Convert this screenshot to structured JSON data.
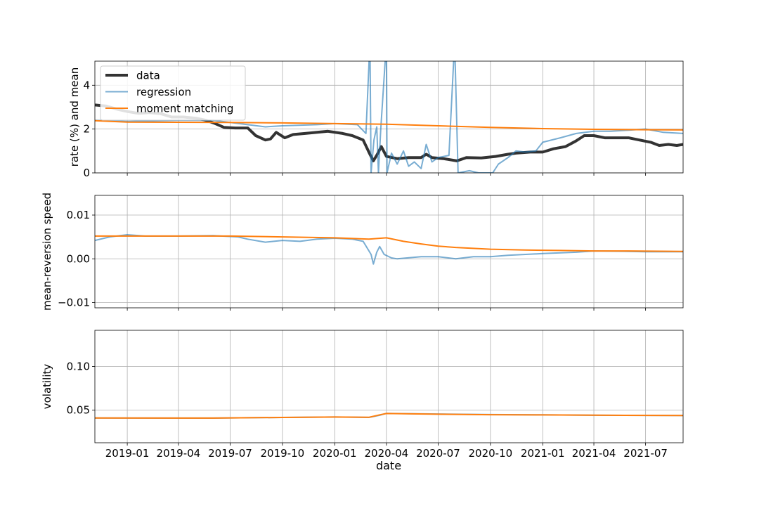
{
  "chart_data": {
    "type": "line",
    "shared_x": {
      "label": "date",
      "range": [
        "2018-11-05",
        "2021-09-05"
      ],
      "ticks": [
        "2019-01-01",
        "2019-04-01",
        "2019-07-01",
        "2019-10-01",
        "2020-01-01",
        "2020-04-01",
        "2020-07-01",
        "2020-10-01",
        "2021-01-01",
        "2021-04-01",
        "2021-07-01"
      ],
      "tick_labels": [
        "2019-01",
        "2019-04",
        "2019-07",
        "2019-10",
        "2020-01",
        "2020-04",
        "2020-07",
        "2020-10",
        "2021-01",
        "2021-04",
        "2021-07"
      ]
    },
    "grid": true,
    "colors": {
      "data": "#333333",
      "regression": "#1f77b4",
      "moment_matching": "#ff7f0e"
    },
    "panels": [
      {
        "ylabel": "rate (%) and mean",
        "ylim": [
          0,
          5.1
        ],
        "yticks": [
          0,
          2,
          4
        ],
        "ytick_labels": [
          "0",
          "2",
          "4"
        ],
        "legend": {
          "position": "top-left",
          "entries": [
            "data",
            "regression",
            "moment matching"
          ]
        },
        "series": [
          {
            "name": "data",
            "key": "data",
            "points": [
              [
                "2018-11-05",
                3.1
              ],
              [
                "2018-11-25",
                3.05
              ],
              [
                "2018-12-15",
                2.9
              ],
              [
                "2019-01-01",
                2.8
              ],
              [
                "2019-01-20",
                2.72
              ],
              [
                "2019-02-10",
                2.75
              ],
              [
                "2019-03-01",
                2.7
              ],
              [
                "2019-03-20",
                2.55
              ],
              [
                "2019-04-10",
                2.55
              ],
              [
                "2019-05-01",
                2.5
              ],
              [
                "2019-05-20",
                2.4
              ],
              [
                "2019-06-05",
                2.25
              ],
              [
                "2019-06-20",
                2.08
              ],
              [
                "2019-07-10",
                2.05
              ],
              [
                "2019-08-01",
                2.05
              ],
              [
                "2019-08-15",
                1.7
              ],
              [
                "2019-09-01",
                1.5
              ],
              [
                "2019-09-10",
                1.55
              ],
              [
                "2019-09-20",
                1.85
              ],
              [
                "2019-10-05",
                1.6
              ],
              [
                "2019-10-20",
                1.75
              ],
              [
                "2019-11-10",
                1.8
              ],
              [
                "2019-12-01",
                1.85
              ],
              [
                "2019-12-20",
                1.9
              ],
              [
                "2020-01-15",
                1.8
              ],
              [
                "2020-02-01",
                1.7
              ],
              [
                "2020-02-20",
                1.5
              ],
              [
                "2020-03-02",
                0.9
              ],
              [
                "2020-03-09",
                0.55
              ],
              [
                "2020-03-16",
                0.85
              ],
              [
                "2020-03-23",
                1.2
              ],
              [
                "2020-04-01",
                0.75
              ],
              [
                "2020-04-20",
                0.65
              ],
              [
                "2020-05-10",
                0.7
              ],
              [
                "2020-06-01",
                0.7
              ],
              [
                "2020-06-10",
                0.85
              ],
              [
                "2020-06-20",
                0.7
              ],
              [
                "2020-07-10",
                0.65
              ],
              [
                "2020-08-03",
                0.55
              ],
              [
                "2020-08-20",
                0.7
              ],
              [
                "2020-09-15",
                0.68
              ],
              [
                "2020-10-10",
                0.75
              ],
              [
                "2020-11-01",
                0.85
              ],
              [
                "2020-11-15",
                0.9
              ],
              [
                "2020-12-10",
                0.95
              ],
              [
                "2021-01-01",
                0.95
              ],
              [
                "2021-01-20",
                1.1
              ],
              [
                "2021-02-10",
                1.2
              ],
              [
                "2021-02-28",
                1.45
              ],
              [
                "2021-03-15",
                1.7
              ],
              [
                "2021-04-01",
                1.7
              ],
              [
                "2021-04-20",
                1.6
              ],
              [
                "2021-05-10",
                1.6
              ],
              [
                "2021-06-01",
                1.6
              ],
              [
                "2021-06-20",
                1.5
              ],
              [
                "2021-07-10",
                1.4
              ],
              [
                "2021-07-25",
                1.25
              ],
              [
                "2021-08-10",
                1.3
              ],
              [
                "2021-08-25",
                1.25
              ],
              [
                "2021-09-05",
                1.3
              ]
            ]
          },
          {
            "name": "regression",
            "key": "regression",
            "points": [
              [
                "2018-11-05",
                2.4
              ],
              [
                "2019-01-01",
                2.35
              ],
              [
                "2019-04-01",
                2.4
              ],
              [
                "2019-06-01",
                2.4
              ],
              [
                "2019-07-01",
                2.3
              ],
              [
                "2019-08-01",
                2.2
              ],
              [
                "2019-09-01",
                2.1
              ],
              [
                "2019-10-01",
                2.15
              ],
              [
                "2019-12-01",
                2.2
              ],
              [
                "2020-01-01",
                2.25
              ],
              [
                "2020-02-10",
                2.2
              ],
              [
                "2020-02-25",
                1.8
              ],
              [
                "2020-03-03",
                6.0
              ],
              [
                "2020-03-05",
                0.0
              ],
              [
                "2020-03-10",
                1.5
              ],
              [
                "2020-03-15",
                2.1
              ],
              [
                "2020-03-18",
                0.0
              ],
              [
                "2020-03-22",
                2.0
              ],
              [
                "2020-04-01",
                6.0
              ],
              [
                "2020-04-02",
                0.0
              ],
              [
                "2020-04-10",
                0.9
              ],
              [
                "2020-04-20",
                0.4
              ],
              [
                "2020-05-01",
                1.0
              ],
              [
                "2020-05-10",
                0.3
              ],
              [
                "2020-05-20",
                0.5
              ],
              [
                "2020-06-01",
                0.2
              ],
              [
                "2020-06-10",
                1.3
              ],
              [
                "2020-06-20",
                0.5
              ],
              [
                "2020-07-01",
                0.7
              ],
              [
                "2020-07-20",
                0.8
              ],
              [
                "2020-07-30",
                6.0
              ],
              [
                "2020-08-05",
                0.0
              ],
              [
                "2020-08-25",
                0.1
              ],
              [
                "2020-09-10",
                0.0
              ],
              [
                "2020-10-05",
                0.0
              ],
              [
                "2020-10-15",
                0.4
              ],
              [
                "2020-11-01",
                0.7
              ],
              [
                "2020-11-15",
                1.0
              ],
              [
                "2020-12-01",
                0.95
              ],
              [
                "2020-12-20",
                1.0
              ],
              [
                "2021-01-01",
                1.4
              ],
              [
                "2021-02-01",
                1.6
              ],
              [
                "2021-03-01",
                1.8
              ],
              [
                "2021-04-01",
                1.9
              ],
              [
                "2021-05-01",
                1.9
              ],
              [
                "2021-06-01",
                1.95
              ],
              [
                "2021-07-01",
                2.0
              ],
              [
                "2021-08-01",
                1.85
              ],
              [
                "2021-09-05",
                1.8
              ]
            ]
          },
          {
            "name": "moment matching",
            "key": "moment_matching",
            "points": [
              [
                "2018-11-05",
                2.38
              ],
              [
                "2019-01-01",
                2.32
              ],
              [
                "2019-07-01",
                2.3
              ],
              [
                "2019-10-01",
                2.28
              ],
              [
                "2020-01-01",
                2.25
              ],
              [
                "2020-04-01",
                2.22
              ],
              [
                "2020-07-01",
                2.15
              ],
              [
                "2020-10-01",
                2.08
              ],
              [
                "2021-01-01",
                2.02
              ],
              [
                "2021-04-01",
                1.99
              ],
              [
                "2021-07-01",
                1.97
              ],
              [
                "2021-09-05",
                1.96
              ]
            ]
          }
        ]
      },
      {
        "ylabel": "mean-reversion speed",
        "ylim": [
          -0.0112,
          0.0145
        ],
        "yticks": [
          -0.01,
          0.0,
          0.01
        ],
        "ytick_labels": [
          "−0.01",
          "0.00",
          "0.01"
        ],
        "series": [
          {
            "key": "regression",
            "points": [
              [
                "2018-11-05",
                0.0042
              ],
              [
                "2018-12-01",
                0.005
              ],
              [
                "2019-01-01",
                0.0055
              ],
              [
                "2019-02-01",
                0.0052
              ],
              [
                "2019-04-01",
                0.0052
              ],
              [
                "2019-06-01",
                0.0053
              ],
              [
                "2019-07-15",
                0.005
              ],
              [
                "2019-08-01",
                0.0045
              ],
              [
                "2019-09-01",
                0.0038
              ],
              [
                "2019-10-01",
                0.0042
              ],
              [
                "2019-11-01",
                0.004
              ],
              [
                "2019-12-01",
                0.0045
              ],
              [
                "2020-01-01",
                0.0047
              ],
              [
                "2020-02-01",
                0.0045
              ],
              [
                "2020-02-20",
                0.004
              ],
              [
                "2020-03-05",
                0.001
              ],
              [
                "2020-03-09",
                -0.0012
              ],
              [
                "2020-03-15",
                0.0015
              ],
              [
                "2020-03-20",
                0.0028
              ],
              [
                "2020-03-28",
                0.001
              ],
              [
                "2020-04-10",
                0.0002
              ],
              [
                "2020-04-20",
                0.0
              ],
              [
                "2020-06-01",
                0.0005
              ],
              [
                "2020-07-01",
                0.0005
              ],
              [
                "2020-08-01",
                0.0
              ],
              [
                "2020-09-01",
                0.0005
              ],
              [
                "2020-10-01",
                0.0005
              ],
              [
                "2020-11-01",
                0.0008
              ],
              [
                "2021-01-01",
                0.0012
              ],
              [
                "2021-03-01",
                0.0015
              ],
              [
                "2021-04-01",
                0.0018
              ],
              [
                "2021-06-01",
                0.0017
              ],
              [
                "2021-07-01",
                0.0016
              ],
              [
                "2021-09-05",
                0.0016
              ]
            ]
          },
          {
            "key": "moment_matching",
            "points": [
              [
                "2018-11-05",
                0.0052
              ],
              [
                "2019-04-01",
                0.0052
              ],
              [
                "2019-07-01",
                0.0052
              ],
              [
                "2019-10-01",
                0.005
              ],
              [
                "2020-01-01",
                0.0048
              ],
              [
                "2020-03-01",
                0.0045
              ],
              [
                "2020-04-01",
                0.0048
              ],
              [
                "2020-05-01",
                0.004
              ],
              [
                "2020-06-01",
                0.0034
              ],
              [
                "2020-07-01",
                0.0029
              ],
              [
                "2020-08-01",
                0.0026
              ],
              [
                "2020-10-01",
                0.0022
              ],
              [
                "2020-12-01",
                0.002
              ],
              [
                "2021-02-01",
                0.0019
              ],
              [
                "2021-04-01",
                0.0018
              ],
              [
                "2021-06-01",
                0.0018
              ],
              [
                "2021-09-05",
                0.0017
              ]
            ]
          }
        ]
      },
      {
        "ylabel": "volatility",
        "ylim": [
          0.0125,
          0.1415
        ],
        "yticks": [
          0.05,
          0.1
        ],
        "ytick_labels": [
          "0.05",
          "0.10"
        ],
        "series": [
          {
            "key": "regression",
            "points": [
              [
                "2018-11-05",
                0.041
              ],
              [
                "2019-06-01",
                0.0408
              ],
              [
                "2019-10-01",
                0.0415
              ],
              [
                "2020-01-01",
                0.042
              ],
              [
                "2020-03-01",
                0.0415
              ],
              [
                "2020-03-20",
                0.044
              ],
              [
                "2020-04-01",
                0.0462
              ],
              [
                "2020-07-01",
                0.0455
              ],
              [
                "2020-10-01",
                0.0448
              ],
              [
                "2021-01-01",
                0.0445
              ],
              [
                "2021-04-01",
                0.044
              ],
              [
                "2021-09-05",
                0.0438
              ]
            ]
          },
          {
            "key": "moment_matching",
            "points": [
              [
                "2018-11-05",
                0.041
              ],
              [
                "2019-06-01",
                0.0408
              ],
              [
                "2019-10-01",
                0.0415
              ],
              [
                "2020-01-01",
                0.042
              ],
              [
                "2020-03-01",
                0.0417
              ],
              [
                "2020-03-20",
                0.0445
              ],
              [
                "2020-04-01",
                0.046
              ],
              [
                "2020-07-01",
                0.0452
              ],
              [
                "2020-10-01",
                0.0447
              ],
              [
                "2021-01-01",
                0.0444
              ],
              [
                "2021-04-01",
                0.0441
              ],
              [
                "2021-09-05",
                0.0438
              ]
            ]
          }
        ]
      }
    ]
  }
}
